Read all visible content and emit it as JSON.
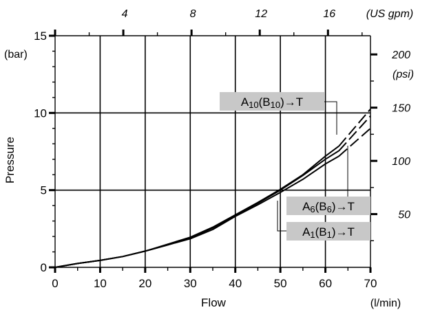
{
  "chart_data": {
    "type": "line",
    "x_bottom": {
      "label": "Flow",
      "unit": "(l/min)",
      "range": [
        0,
        70
      ],
      "ticks": [
        0,
        10,
        20,
        30,
        40,
        50,
        60,
        70
      ]
    },
    "y_left": {
      "label": "Pressure",
      "unit": "(bar)",
      "range": [
        0,
        15
      ],
      "ticks": [
        0,
        5,
        10,
        15
      ]
    },
    "x_top": {
      "unit": "(US gpm)",
      "ticks": [
        4,
        8,
        12,
        16
      ]
    },
    "y_right": {
      "unit": "(psi)",
      "ticks": [
        50,
        100,
        150,
        200
      ]
    },
    "grid": true,
    "series": [
      {
        "name": "A10(B10)→T",
        "sub": "10",
        "x": [
          0,
          5,
          10,
          15,
          20,
          25,
          30,
          35,
          40,
          45,
          50,
          55,
          60,
          63
        ],
        "y": [
          0,
          0.25,
          0.45,
          0.7,
          1.05,
          1.5,
          1.95,
          2.6,
          3.4,
          4.2,
          5.05,
          6.0,
          7.2,
          7.85
        ],
        "dashed_x": [
          63,
          70
        ],
        "dashed_y": [
          7.85,
          10.25
        ]
      },
      {
        "name": "A6(B6)→T",
        "sub": "6",
        "x": [
          0,
          5,
          10,
          15,
          20,
          25,
          30,
          35,
          40,
          45,
          50,
          55,
          60,
          63
        ],
        "y": [
          0,
          0.25,
          0.45,
          0.7,
          1.05,
          1.45,
          1.9,
          2.55,
          3.35,
          4.15,
          5.0,
          5.95,
          7.0,
          7.55
        ],
        "dashed_x": [
          63,
          70
        ],
        "dashed_y": [
          7.55,
          9.8
        ]
      },
      {
        "name": "A1(B1)→T",
        "sub": "1",
        "x": [
          0,
          5,
          10,
          15,
          20,
          25,
          30,
          35,
          40,
          45,
          50,
          55,
          60,
          63
        ],
        "y": [
          0,
          0.25,
          0.45,
          0.7,
          1.05,
          1.45,
          1.85,
          2.45,
          3.3,
          4.05,
          4.85,
          5.7,
          6.7,
          7.2
        ],
        "dashed_x": [
          63,
          70
        ],
        "dashed_y": [
          7.2,
          9.0
        ]
      }
    ]
  }
}
